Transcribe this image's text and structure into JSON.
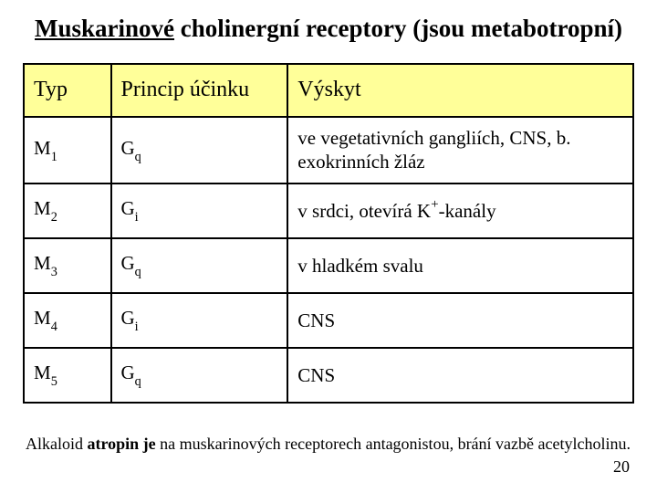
{
  "title": {
    "underlined": "Muskarinové",
    "rest": " cholinergní receptory (jsou metabotropní)"
  },
  "table": {
    "headers": {
      "c0": "Typ",
      "c1": "Princip účinku",
      "c2": "Výskyt"
    },
    "rows": [
      {
        "type_main": "M",
        "type_sub": "1",
        "princ_main": "G",
        "princ_sub": "q",
        "occ_pre": "ve vegetativních gangliích, CNS, b. exokrinních žláz",
        "occ_sup": "",
        "occ_post": ""
      },
      {
        "type_main": "M",
        "type_sub": "2",
        "princ_main": "G",
        "princ_sub": "i",
        "occ_pre": "v srdci, otevírá K",
        "occ_sup": "+",
        "occ_post": "-kanály"
      },
      {
        "type_main": "M",
        "type_sub": "3",
        "princ_main": "G",
        "princ_sub": "q",
        "occ_pre": "v hladkém svalu",
        "occ_sup": "",
        "occ_post": ""
      },
      {
        "type_main": "M",
        "type_sub": "4",
        "princ_main": "G",
        "princ_sub": "i",
        "occ_pre": " CNS",
        "occ_sup": "",
        "occ_post": ""
      },
      {
        "type_main": "M",
        "type_sub": "5",
        "princ_main": "G",
        "princ_sub": "q",
        "occ_pre": "CNS",
        "occ_sup": "",
        "occ_post": ""
      }
    ]
  },
  "footnote": {
    "p1": "Alkaloid ",
    "bold": "atropin je",
    "p2": " na muskarinových receptorech antagonistou, brání vazbě acetylcholinu."
  },
  "page": "20",
  "colors": {
    "header_bg": "#ffff99",
    "border": "#000000",
    "bg": "#ffffff"
  }
}
